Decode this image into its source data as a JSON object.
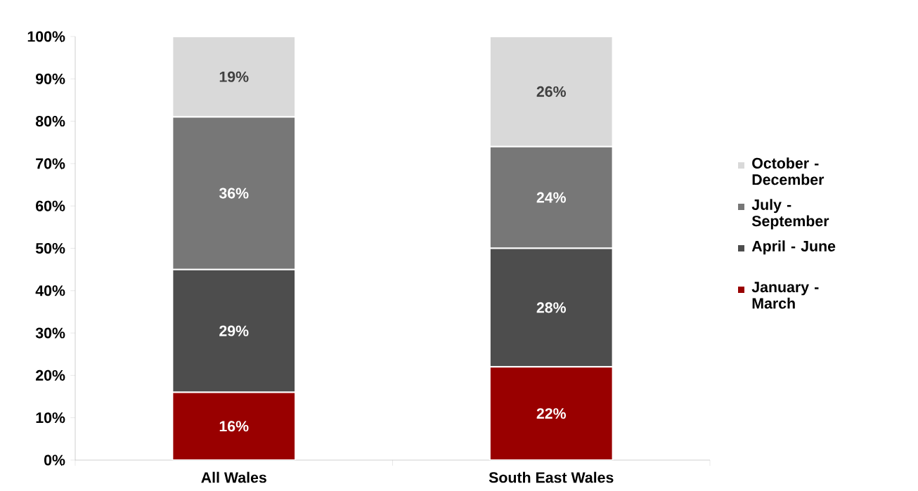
{
  "chart_data": {
    "type": "bar",
    "stacked": true,
    "categories": [
      "All Wales",
      "South East Wales"
    ],
    "series": [
      {
        "name": "January  - March",
        "color": "#990000",
        "values": [
          16,
          22
        ],
        "value_labels": [
          "16%",
          "22%"
        ]
      },
      {
        "name": "April - June",
        "color": "#4d4d4d",
        "values": [
          29,
          28
        ],
        "value_labels": [
          "29%",
          "28%"
        ]
      },
      {
        "name": "July - September",
        "color": "#777777",
        "values": [
          36,
          24
        ],
        "value_labels": [
          "36%",
          "24%"
        ]
      },
      {
        "name": "October - December",
        "color": "#d9d9d9",
        "values": [
          19,
          26
        ],
        "value_labels": [
          "19%",
          "26%"
        ]
      }
    ],
    "ylim": [
      0,
      100
    ],
    "yticks": [
      {
        "value": 0,
        "label": "0%"
      },
      {
        "value": 10,
        "label": "10%"
      },
      {
        "value": 20,
        "label": "20%"
      },
      {
        "value": 30,
        "label": "30%"
      },
      {
        "value": 40,
        "label": "40%"
      },
      {
        "value": 50,
        "label": "50%"
      },
      {
        "value": 60,
        "label": "60%"
      },
      {
        "value": 70,
        "label": "70%"
      },
      {
        "value": 80,
        "label": "80%"
      },
      {
        "value": 90,
        "label": "90%"
      },
      {
        "value": 100,
        "label": "100%"
      }
    ],
    "grid": false,
    "legend": "right"
  }
}
